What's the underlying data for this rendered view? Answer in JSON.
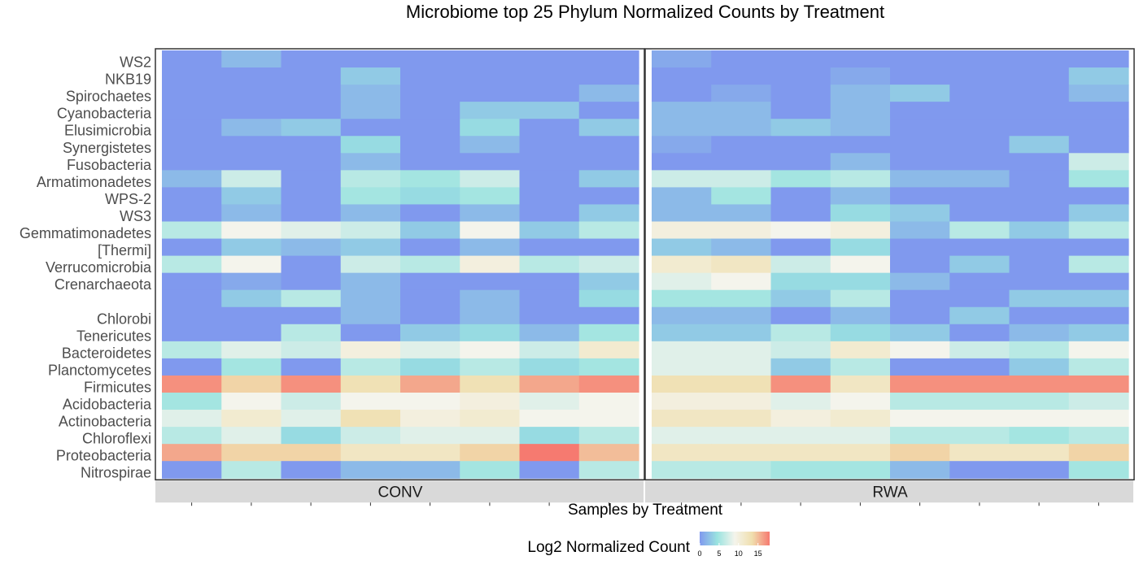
{
  "chart_data": {
    "type": "heatmap",
    "title": "Microbiome top 25 Phylum Normalized Counts by Treatment",
    "xlabel": "Samples by Treatment",
    "ylabel": "",
    "rows": [
      "WS2",
      "NKB19",
      "Spirochaetes",
      "Cyanobacteria",
      "Elusimicrobia",
      "Synergistetes",
      "Fusobacteria",
      "Armatimonadetes",
      "WPS-2",
      "WS3",
      "Gemmatimonadetes",
      "[Thermi]",
      "Verrucomicrobia",
      "Crenarchaeota",
      "",
      "Chlorobi",
      "Tenericutes",
      "Bacteroidetes",
      "Planctomycetes",
      "Firmicutes",
      "Acidobacteria",
      "Actinobacteria",
      "Chloroflexi",
      "Proteobacteria",
      "Nitrospirae"
    ],
    "facets": [
      {
        "name": "CONV",
        "values": [
          [
            0,
            2,
            0,
            0,
            0,
            0,
            0,
            0
          ],
          [
            0,
            0,
            0,
            3,
            0,
            0,
            0,
            0
          ],
          [
            0,
            0,
            0,
            2,
            0,
            0,
            0,
            2
          ],
          [
            0,
            0,
            0,
            2,
            0,
            3,
            3,
            0
          ],
          [
            0,
            2,
            3,
            0,
            0,
            4,
            0,
            3
          ],
          [
            0,
            0,
            0,
            4,
            0,
            2,
            0,
            0
          ],
          [
            0,
            0,
            0,
            2,
            0,
            0,
            0,
            0
          ],
          [
            2,
            7,
            0,
            6,
            5,
            7,
            0,
            3
          ],
          [
            0,
            3,
            0,
            5,
            4,
            5,
            0,
            0
          ],
          [
            0,
            2,
            0,
            2,
            0,
            2,
            0,
            3
          ],
          [
            6,
            9,
            8,
            7,
            3,
            9,
            3,
            6
          ],
          [
            0,
            3,
            2,
            3,
            0,
            2,
            0,
            0
          ],
          [
            6,
            9,
            0,
            7,
            6,
            10,
            6,
            7
          ],
          [
            0,
            1,
            0,
            2,
            0,
            0,
            0,
            3
          ],
          [
            0,
            3,
            6,
            2,
            0,
            2,
            0,
            4
          ],
          [
            0,
            0,
            0,
            2,
            0,
            2,
            0,
            0
          ],
          [
            0,
            0,
            6,
            0,
            3,
            4,
            2,
            5
          ],
          [
            6,
            8,
            7,
            10,
            8,
            9,
            7,
            11
          ],
          [
            0,
            5,
            0,
            6,
            4,
            6,
            4,
            5
          ],
          [
            17,
            14,
            17,
            13,
            16,
            13,
            16,
            17
          ],
          [
            5,
            9,
            7,
            9,
            9,
            10,
            8,
            9
          ],
          [
            8,
            11,
            8,
            13,
            10,
            11,
            9,
            9
          ],
          [
            6,
            8,
            4,
            7,
            8,
            8,
            4,
            6
          ],
          [
            16,
            14,
            14,
            12,
            12,
            14,
            18,
            15
          ],
          [
            0,
            6,
            0,
            2,
            2,
            5,
            0,
            6
          ]
        ]
      },
      {
        "name": "RWA",
        "values": [
          [
            1,
            0,
            0,
            0,
            0,
            0,
            0,
            0
          ],
          [
            0,
            0,
            0,
            1,
            0,
            0,
            0,
            3
          ],
          [
            0,
            1,
            0,
            2,
            3,
            0,
            0,
            2
          ],
          [
            2,
            2,
            0,
            2,
            0,
            0,
            0,
            0
          ],
          [
            2,
            2,
            3,
            2,
            0,
            0,
            0,
            0
          ],
          [
            1,
            0,
            0,
            0,
            0,
            0,
            3,
            0
          ],
          [
            0,
            0,
            0,
            2,
            0,
            0,
            0,
            7
          ],
          [
            7,
            7,
            5,
            6,
            2,
            2,
            0,
            5
          ],
          [
            2,
            5,
            0,
            2,
            0,
            0,
            0,
            0
          ],
          [
            2,
            2,
            0,
            4,
            3,
            0,
            0,
            3
          ],
          [
            10,
            10,
            9,
            10,
            2,
            6,
            3,
            6
          ],
          [
            3,
            2,
            0,
            4,
            0,
            0,
            0,
            0
          ],
          [
            11,
            12,
            7,
            9,
            0,
            3,
            0,
            6
          ],
          [
            8,
            9,
            4,
            4,
            2,
            0,
            0,
            0
          ],
          [
            5,
            5,
            3,
            6,
            0,
            0,
            3,
            3
          ],
          [
            2,
            2,
            0,
            2,
            0,
            3,
            0,
            0
          ],
          [
            3,
            3,
            6,
            4,
            3,
            0,
            2,
            3
          ],
          [
            8,
            8,
            7,
            11,
            9,
            7,
            6,
            9
          ],
          [
            8,
            8,
            3,
            6,
            0,
            0,
            3,
            6
          ],
          [
            13,
            13,
            17,
            12,
            17,
            17,
            17,
            17
          ],
          [
            10,
            10,
            8,
            9,
            6,
            6,
            6,
            7
          ],
          [
            12,
            12,
            10,
            11,
            9,
            9,
            9,
            9
          ],
          [
            8,
            8,
            8,
            8,
            6,
            6,
            5,
            6
          ],
          [
            12,
            12,
            12,
            12,
            14,
            12,
            12,
            14
          ],
          [
            6,
            6,
            5,
            5,
            2,
            0,
            0,
            5
          ]
        ]
      }
    ],
    "legend": {
      "title": "Log2 Normalized Count",
      "ticks": [
        "0",
        "5",
        "10",
        "15"
      ],
      "range": [
        0,
        18
      ],
      "colors": [
        "#8099ee",
        "#9ae3e0",
        "#f4f4ec",
        "#f0dfae",
        "#f67a70"
      ],
      "placement": "bottom"
    },
    "grid": false,
    "panel_background": "#d9d9d9"
  }
}
